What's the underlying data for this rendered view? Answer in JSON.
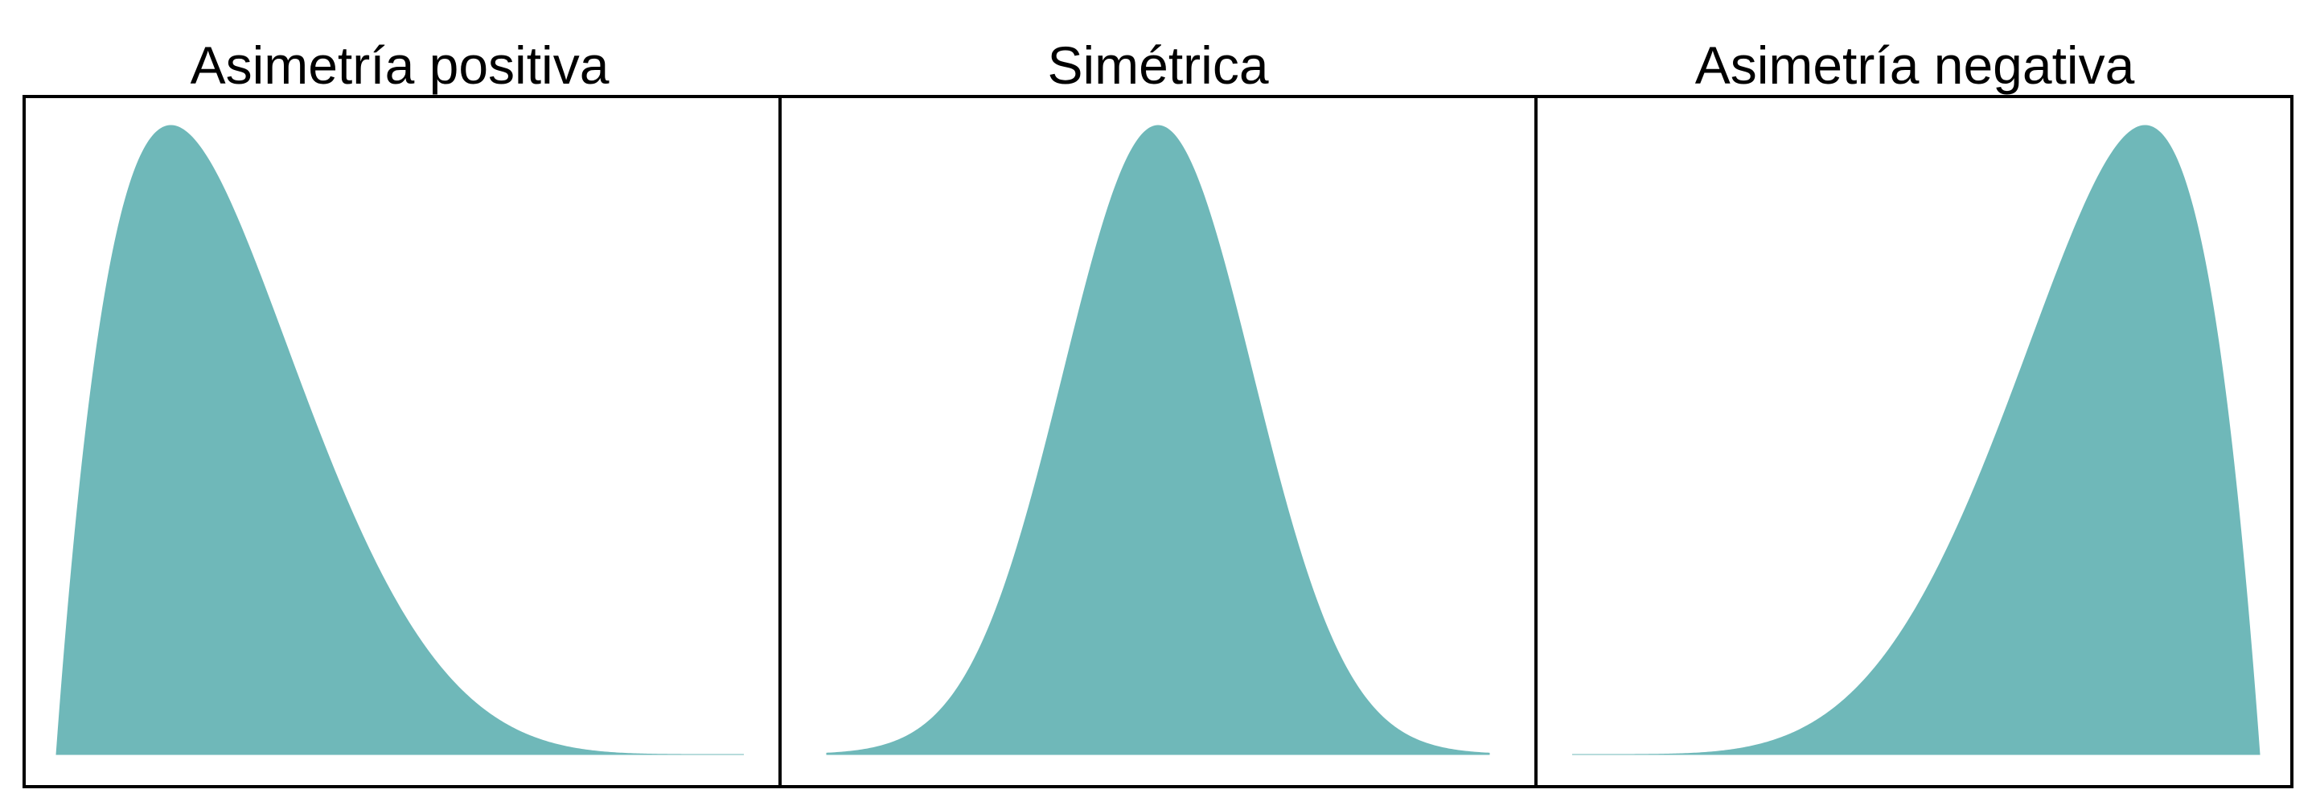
{
  "chart_data": [
    {
      "type": "area",
      "title": "Asimetría positiva",
      "color": "#6fb8b9",
      "axes_visible": false,
      "grid": false,
      "distribution": "beta",
      "alpha": 2,
      "beta": 6,
      "xlim": [
        0,
        1
      ]
    },
    {
      "type": "area",
      "title": "Simétrica",
      "color": "#6fb8b9",
      "axes_visible": false,
      "grid": false,
      "distribution": "normal",
      "mean": 0,
      "sd": 1,
      "xlim": [
        -3.5,
        3.5
      ]
    },
    {
      "type": "area",
      "title": "Asimetría negativa",
      "color": "#6fb8b9",
      "axes_visible": false,
      "grid": false,
      "distribution": "beta",
      "alpha": 6,
      "beta": 2,
      "xlim": [
        0,
        1
      ]
    }
  ]
}
